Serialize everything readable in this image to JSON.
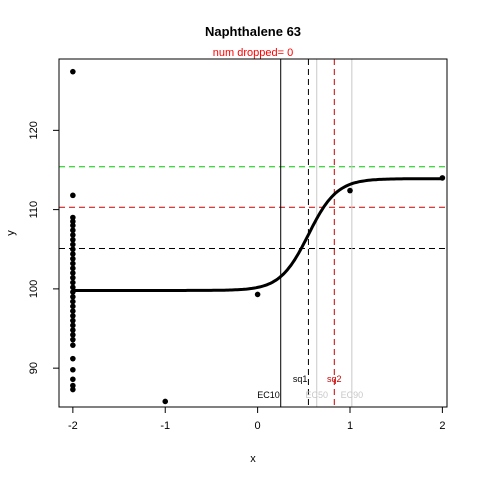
{
  "chart_data": {
    "type": "scatter",
    "title": "Naphthalene 63",
    "subtitle": "num dropped= 0",
    "xlabel": "x",
    "ylabel": "y",
    "xlim": [
      -2.15,
      2.05
    ],
    "ylim": [
      85.1,
      129.0
    ],
    "x_ticks": [
      -2,
      -1,
      0,
      1,
      2
    ],
    "x_tick_labels": [
      "-2",
      "-1",
      "0",
      "1",
      "2"
    ],
    "y_ticks": [
      90,
      100,
      110,
      120
    ],
    "y_tick_labels": [
      "90",
      "100",
      "110",
      "120"
    ],
    "grid": false,
    "colors": {
      "red": "#ff0000",
      "green": "#00cc00",
      "black": "#000000",
      "gray": "#c8c8c8",
      "dark_red": "#cc0000"
    },
    "fitted_curve": {
      "bottom": 99.8,
      "top": 113.9,
      "midpoint_x": 0.55,
      "slope": 6.5
    },
    "points": [
      {
        "x": -2,
        "y": 127.4
      },
      {
        "x": -2,
        "y": 111.8
      },
      {
        "x": -2,
        "y": 109.0
      },
      {
        "x": -2,
        "y": 108.5
      },
      {
        "x": -2,
        "y": 108.0
      },
      {
        "x": -2,
        "y": 107.4
      },
      {
        "x": -2,
        "y": 106.8
      },
      {
        "x": -2,
        "y": 106.2
      },
      {
        "x": -2,
        "y": 105.6
      },
      {
        "x": -2,
        "y": 105.0
      },
      {
        "x": -2,
        "y": 104.4
      },
      {
        "x": -2,
        "y": 103.8
      },
      {
        "x": -2,
        "y": 103.2
      },
      {
        "x": -2,
        "y": 102.6
      },
      {
        "x": -2,
        "y": 102.0
      },
      {
        "x": -2,
        "y": 101.4
      },
      {
        "x": -2,
        "y": 100.8
      },
      {
        "x": -2,
        "y": 100.2
      },
      {
        "x": -2,
        "y": 99.6
      },
      {
        "x": -2,
        "y": 99.0
      },
      {
        "x": -2,
        "y": 98.4
      },
      {
        "x": -2,
        "y": 97.8
      },
      {
        "x": -2,
        "y": 97.2
      },
      {
        "x": -2,
        "y": 96.6
      },
      {
        "x": -2,
        "y": 96.0
      },
      {
        "x": -2,
        "y": 95.4
      },
      {
        "x": -2,
        "y": 94.8
      },
      {
        "x": -2,
        "y": 94.2
      },
      {
        "x": -2,
        "y": 93.6
      },
      {
        "x": -2,
        "y": 92.9
      },
      {
        "x": -2,
        "y": 91.2
      },
      {
        "x": -2,
        "y": 89.8
      },
      {
        "x": -2,
        "y": 88.6
      },
      {
        "x": -2,
        "y": 87.8
      },
      {
        "x": -2,
        "y": 87.3
      },
      {
        "x": -1,
        "y": 85.8
      },
      {
        "x": 0,
        "y": 99.3
      },
      {
        "x": 1,
        "y": 112.4
      },
      {
        "x": 2,
        "y": 114.0
      }
    ],
    "hlines": [
      {
        "y": 115.4,
        "color": "#00cc00",
        "dash": true
      },
      {
        "y": 110.3,
        "color": "#cc0000",
        "dash": true
      },
      {
        "y": 105.1,
        "color": "#000000",
        "dash": true
      }
    ],
    "vlines": [
      {
        "x": 0.25,
        "color": "#000000",
        "dash": false,
        "label": "EC10",
        "label_color": "#000000"
      },
      {
        "x": 0.55,
        "color": "#000000",
        "dash": true,
        "label": "sq1",
        "label_color": "#000000"
      },
      {
        "x": 0.64,
        "color": "#c8c8c8",
        "dash": false,
        "label": "EC50",
        "label_color": "#c8c8c8"
      },
      {
        "x": 0.83,
        "color": "#cc0000",
        "dash": true,
        "label": "sq2",
        "label_color": "#cc0000"
      },
      {
        "x": 1.02,
        "color": "#c8c8c8",
        "dash": false,
        "label": "EC90",
        "label_color": "#c8c8c8"
      }
    ]
  }
}
